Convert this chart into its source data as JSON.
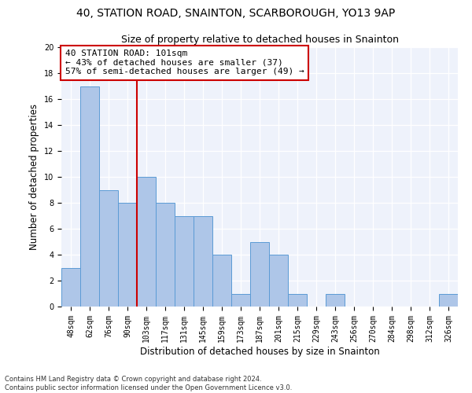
{
  "title1": "40, STATION ROAD, SNAINTON, SCARBOROUGH, YO13 9AP",
  "title2": "Size of property relative to detached houses in Snainton",
  "xlabel": "Distribution of detached houses by size in Snainton",
  "ylabel": "Number of detached properties",
  "categories": [
    "48sqm",
    "62sqm",
    "76sqm",
    "90sqm",
    "103sqm",
    "117sqm",
    "131sqm",
    "145sqm",
    "159sqm",
    "173sqm",
    "187sqm",
    "201sqm",
    "215sqm",
    "229sqm",
    "243sqm",
    "256sqm",
    "270sqm",
    "284sqm",
    "298sqm",
    "312sqm",
    "326sqm"
  ],
  "values": [
    3,
    17,
    9,
    8,
    10,
    8,
    7,
    7,
    4,
    1,
    5,
    4,
    1,
    0,
    1,
    0,
    0,
    0,
    0,
    0,
    1
  ],
  "bar_color": "#aec6e8",
  "bar_edge_color": "#5b9bd5",
  "annotation_text1": "40 STATION ROAD: 101sqm",
  "annotation_text2": "← 43% of detached houses are smaller (37)",
  "annotation_text3": "57% of semi-detached houses are larger (49) →",
  "annotation_box_color": "#ffffff",
  "annotation_box_edge_color": "#cc0000",
  "highlight_line_color": "#cc0000",
  "ylim": [
    0,
    20
  ],
  "yticks": [
    0,
    2,
    4,
    6,
    8,
    10,
    12,
    14,
    16,
    18,
    20
  ],
  "bg_color": "#eef2fb",
  "footer": "Contains HM Land Registry data © Crown copyright and database right 2024.\nContains public sector information licensed under the Open Government Licence v3.0.",
  "title1_fontsize": 10,
  "title2_fontsize": 9,
  "xlabel_fontsize": 8.5,
  "ylabel_fontsize": 8.5,
  "annotation_fontsize": 8,
  "footer_fontsize": 6,
  "tick_fontsize": 7
}
